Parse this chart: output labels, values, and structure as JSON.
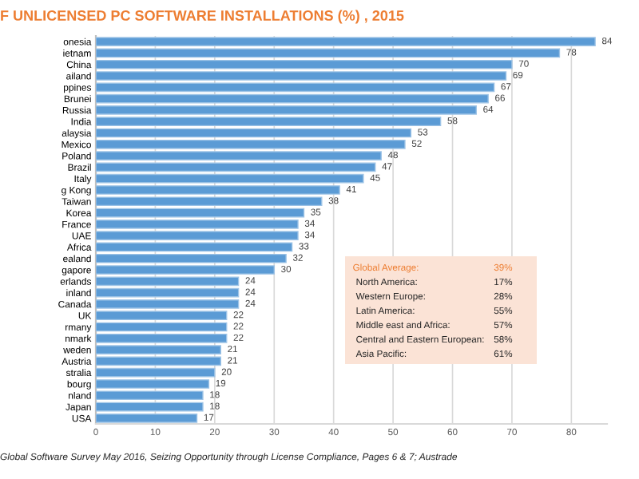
{
  "chart_data": {
    "type": "bar",
    "orientation": "horizontal",
    "title": "F UNLICENSED PC SOFTWARE INSTALLATIONS (%) , 2015",
    "categories": [
      "onesia",
      "ietnam",
      "China",
      "ailand",
      "ppines",
      "Brunei",
      "Russia",
      "India",
      "alaysia",
      "Mexico",
      "Poland",
      "Brazil",
      "Italy",
      "g Kong",
      "Taiwan",
      "Korea",
      "France",
      "UAE",
      "Africa",
      "ealand",
      "gapore",
      "erlands",
      "inland",
      "Canada",
      "UK",
      "rmany",
      "nmark",
      "weden",
      "Austria",
      "stralia",
      "bourg",
      "nland",
      "Japan",
      "USA"
    ],
    "values": [
      84,
      78,
      70,
      69,
      67,
      66,
      64,
      58,
      53,
      52,
      48,
      47,
      45,
      41,
      38,
      35,
      34,
      34,
      33,
      32,
      30,
      24,
      24,
      24,
      22,
      22,
      22,
      21,
      21,
      20,
      19,
      18,
      18,
      17
    ],
    "color": "#5b9bd5",
    "data_labels": true,
    "xlim": [
      0,
      86
    ],
    "xticks": [
      0,
      10,
      20,
      30,
      40,
      50,
      60,
      70,
      80
    ],
    "grid": "x",
    "annotations": [
      "Global Software Survey May 2016, Seizing Opportunity through License Compliance, Pages 6 & 7; Austrade",
      "Global Average:",
      "39%",
      "North America:",
      "17%",
      "Western Europe:",
      "28%",
      "Latin America:",
      "55%",
      "Middle east and Africa:",
      "57%",
      "Central and Eastern European:",
      "58%",
      "Asia Pacific:",
      "61%"
    ]
  }
}
